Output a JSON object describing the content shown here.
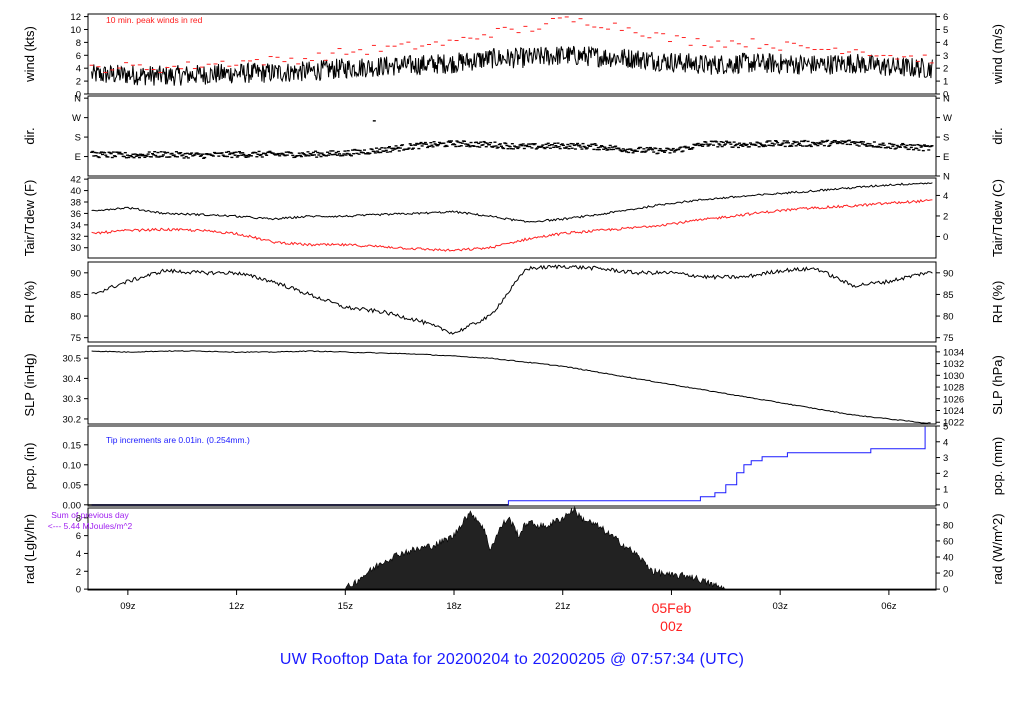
{
  "colors": {
    "black": "#000000",
    "red": "#ff2020",
    "blue": "#1a1aff",
    "purple": "#a020f0",
    "fill": "#222222"
  },
  "footer": {
    "title": "UW Rooftop Data for 20200204  to  20200205 @ 07:57:34  (UTC)"
  },
  "time_axis": {
    "ticks": [
      "09z",
      "12z",
      "15z",
      "18z",
      "21z",
      "03z",
      "06z"
    ],
    "date_label": "05Feb",
    "midnight_label": "00z"
  },
  "panels": {
    "wind": {
      "ylabel_left": "wind (kts)",
      "ylabel_right": "wind (m/s)",
      "left_ticks": [
        "0",
        "2",
        "4",
        "6",
        "8",
        "10",
        "12"
      ],
      "right_ticks": [
        "0",
        "1",
        "2",
        "3",
        "4",
        "5",
        "6"
      ],
      "note": "10 min. peak winds in red"
    },
    "dir": {
      "ylabel_left": "dir.",
      "ylabel_right": "dir.",
      "left_ticks": [
        "E",
        "S",
        "W",
        "N"
      ],
      "right_ticks": [
        "N",
        "E",
        "S",
        "W",
        "N"
      ]
    },
    "temp": {
      "ylabel_left": "Tair/Tdew (F)",
      "ylabel_right": "Tair/Tdew (C)",
      "left_ticks": [
        "30",
        "32",
        "34",
        "36",
        "38",
        "40",
        "42"
      ],
      "right_ticks": [
        "0",
        "2",
        "4"
      ]
    },
    "rh": {
      "ylabel_left": "RH (%)",
      "ylabel_right": "RH (%)",
      "left_ticks": [
        "75",
        "80",
        "85",
        "90"
      ],
      "right_ticks": [
        "75",
        "80",
        "85",
        "90"
      ]
    },
    "slp": {
      "ylabel_left": "SLP (inHg)",
      "ylabel_right": "SLP (hPa)",
      "left_ticks": [
        "30.2",
        "30.3",
        "30.4",
        "30.5"
      ],
      "right_ticks": [
        "1022",
        "1024",
        "1026",
        "1028",
        "1030",
        "1032",
        "1034"
      ]
    },
    "pcp": {
      "ylabel_left": "pcp. (in)",
      "ylabel_right": "pcp. (mm)",
      "left_ticks": [
        "0.00",
        "0.05",
        "0.10",
        "0.15"
      ],
      "right_ticks": [
        "0",
        "1",
        "2",
        "3",
        "4",
        "5"
      ],
      "note": "Tip increments are 0.01in. (0.254mm.)"
    },
    "rad": {
      "ylabel_left": "rad (Lgly/hr)",
      "ylabel_right": "rad (W/m^2)",
      "left_ticks": [
        "0",
        "2",
        "4",
        "6",
        "8"
      ],
      "right_ticks": [
        "0",
        "20",
        "40",
        "60",
        "80"
      ],
      "note_line1": "Sum of previous day",
      "note_line2": "<--- 5.44 MJoules/m^2"
    }
  },
  "chart_data": [
    {
      "type": "line",
      "name": "wind",
      "x": [
        8,
        9,
        10,
        11,
        12,
        13,
        14,
        15,
        16,
        17,
        18,
        19,
        20,
        21,
        22,
        23,
        24,
        25,
        26,
        27,
        28,
        29,
        30,
        31
      ],
      "ylim": [
        0,
        12
      ],
      "series": [
        {
          "values": [
            3,
            3,
            2.8,
            3,
            3.2,
            3.3,
            3.5,
            4,
            4.3,
            4.5,
            4.8,
            5.5,
            5.6,
            6,
            5.8,
            5.5,
            5,
            4.5,
            4.8,
            4.7,
            4.5,
            4.8,
            4.2,
            4
          ]
        },
        {
          "values": [
            4,
            4.2,
            4,
            4.5,
            5,
            5.2,
            5.5,
            6.5,
            7,
            7.5,
            8,
            9.5,
            10,
            11.5,
            11,
            10,
            8.5,
            8,
            8,
            7.5,
            7,
            7,
            6,
            5.5
          ]
        }
      ]
    },
    {
      "type": "scatter",
      "name": "dir",
      "x": [
        8,
        9,
        10,
        11,
        12,
        13,
        14,
        15,
        16,
        17,
        18,
        19,
        20,
        21,
        22,
        23,
        24,
        25,
        26,
        27,
        28,
        29,
        30,
        31
      ],
      "values_deg": [
        100,
        95,
        100,
        95,
        100,
        100,
        100,
        105,
        120,
        140,
        150,
        145,
        135,
        140,
        135,
        120,
        115,
        150,
        145,
        150,
        150,
        155,
        140,
        130
      ]
    },
    {
      "type": "line",
      "name": "temp",
      "x": [
        8,
        9,
        10,
        11,
        12,
        13,
        14,
        15,
        16,
        17,
        18,
        19,
        20,
        21,
        22,
        23,
        24,
        25,
        26,
        27,
        28,
        29,
        30,
        31
      ],
      "ylim": [
        28,
        42
      ],
      "series": [
        {
          "values": [
            36.5,
            37,
            36,
            35.8,
            35.5,
            35,
            35.5,
            35.5,
            35.8,
            36,
            36.3,
            35.5,
            34.5,
            35,
            35.8,
            36.8,
            37.8,
            38.5,
            39,
            39.5,
            40,
            40.5,
            41,
            41.3
          ]
        },
        {
          "values": [
            32.5,
            33,
            33.2,
            33,
            32.5,
            31,
            30.5,
            30.5,
            30.2,
            29.8,
            29.5,
            30,
            31.5,
            32.5,
            33,
            33.5,
            34.2,
            35,
            35.8,
            36.5,
            37,
            37.3,
            37.8,
            38.2
          ]
        }
      ]
    },
    {
      "type": "line",
      "name": "rh",
      "x": [
        8,
        9,
        10,
        11,
        12,
        13,
        14,
        15,
        16,
        17,
        18,
        19,
        20,
        21,
        22,
        23,
        24,
        25,
        26,
        27,
        28,
        29,
        30,
        31
      ],
      "ylim": [
        74,
        92
      ],
      "values": [
        85,
        88,
        90.5,
        90,
        90,
        88,
        85,
        82,
        81,
        79,
        76,
        80,
        91,
        91.5,
        91,
        90,
        90,
        89,
        89,
        90.5,
        91,
        87,
        88,
        90
      ]
    },
    {
      "type": "line",
      "name": "slp",
      "x": [
        8,
        9,
        10,
        11,
        12,
        13,
        14,
        15,
        16,
        17,
        18,
        19,
        20,
        21,
        22,
        23,
        24,
        25,
        26,
        27,
        28,
        29,
        30,
        31
      ],
      "ylim": [
        30.17,
        30.56
      ],
      "values": [
        30.535,
        30.53,
        30.535,
        30.535,
        30.53,
        30.53,
        30.535,
        30.53,
        30.525,
        30.52,
        30.51,
        30.5,
        30.48,
        30.46,
        30.43,
        30.4,
        30.37,
        30.34,
        30.31,
        30.28,
        30.25,
        30.22,
        30.2,
        30.18
      ]
    },
    {
      "type": "line",
      "name": "pcp",
      "step": true,
      "x": [
        8,
        19.5,
        19.5,
        24.5,
        24.8,
        25.2,
        25.5,
        25.8,
        26.0,
        26.2,
        26.5,
        26.8,
        27.2,
        29.5,
        29.5,
        31
      ],
      "ylim": [
        0,
        0.2
      ],
      "values": [
        0,
        0,
        0.01,
        0.01,
        0.02,
        0.03,
        0.05,
        0.08,
        0.1,
        0.11,
        0.12,
        0.12,
        0.13,
        0.13,
        0.14,
        0.195
      ]
    },
    {
      "type": "area",
      "name": "rad",
      "x": [
        8,
        15,
        15.5,
        16,
        16.5,
        17,
        17.5,
        18,
        18.3,
        18.5,
        18.8,
        19,
        19.3,
        19.5,
        19.8,
        20,
        20.5,
        21,
        21.3,
        21.5,
        22,
        22.5,
        23,
        23.5,
        24,
        24.5,
        25,
        25.5,
        31
      ],
      "ylim": [
        0,
        9
      ],
      "values": [
        0,
        0,
        1.5,
        3,
        4,
        4.5,
        5,
        6,
        8,
        8.5,
        7,
        4.5,
        7,
        8,
        6,
        7.5,
        7,
        8,
        9,
        8,
        7,
        5.5,
        4,
        2,
        1.5,
        1.5,
        0.7,
        0,
        0
      ]
    }
  ]
}
